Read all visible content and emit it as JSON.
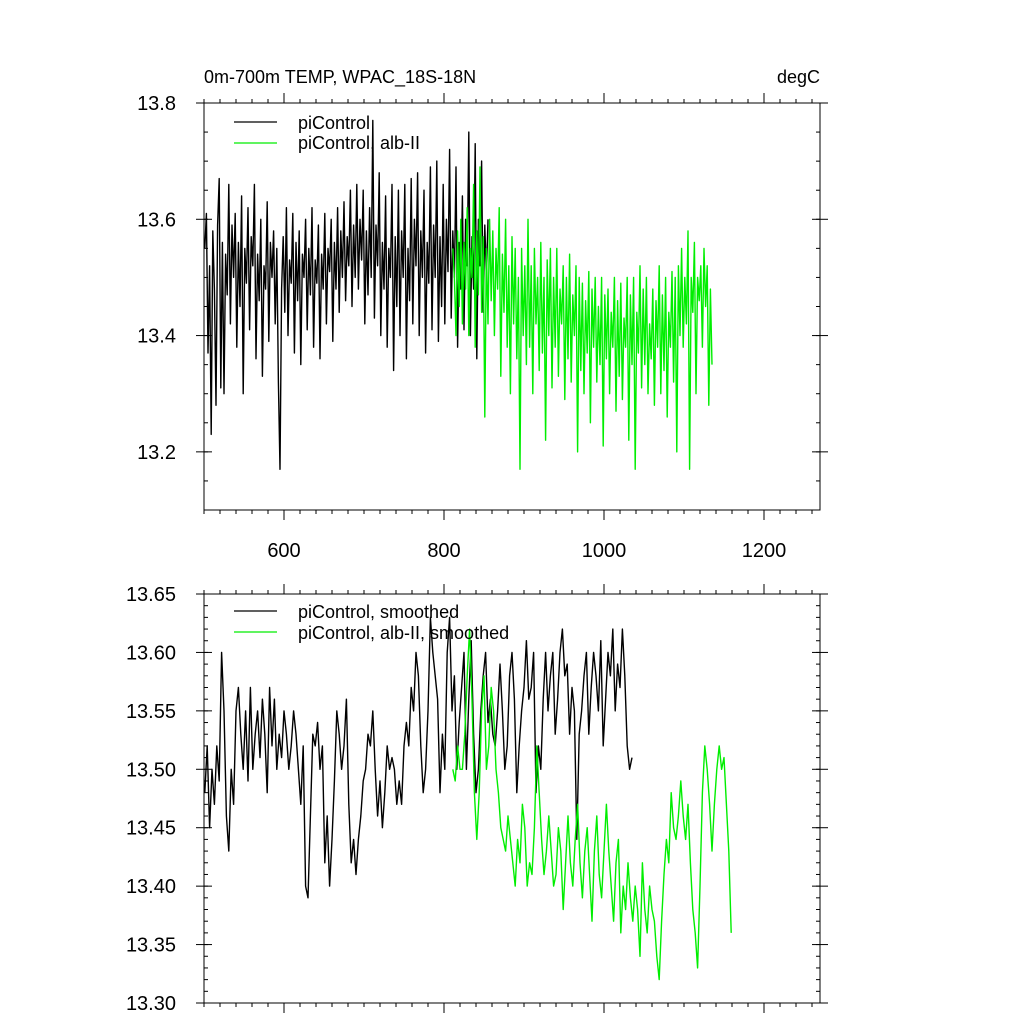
{
  "header": {
    "title_left": "0m-700m TEMP, WPAC_18S-18N",
    "title_right": "degC"
  },
  "chart_data": [
    {
      "type": "line",
      "title": "0m-700m TEMP, WPAC_18S-18N",
      "units": "degC",
      "xlim": [
        500,
        1270
      ],
      "ylim": [
        13.1,
        13.8
      ],
      "xticks": [
        600,
        800,
        1000,
        1200
      ],
      "xtick_labels": [
        "600",
        "800",
        "1000",
        "1200"
      ],
      "yticks": [
        13.2,
        13.4,
        13.6,
        13.8
      ],
      "ytick_labels": [
        "13.2",
        "13.4",
        "13.6",
        "13.8"
      ],
      "grid": false,
      "legend_position": "top-left",
      "series": [
        {
          "name": "piControl",
          "color": "#000000",
          "x_start": 501,
          "x_step": 2,
          "values": [
            13.55,
            13.61,
            13.37,
            13.52,
            13.23,
            13.58,
            13.48,
            13.28,
            13.59,
            13.67,
            13.31,
            13.56,
            13.3,
            13.54,
            13.47,
            13.66,
            13.42,
            13.59,
            13.5,
            13.61,
            13.38,
            13.56,
            13.45,
            13.64,
            13.3,
            13.55,
            13.49,
            13.62,
            13.41,
            13.57,
            13.52,
            13.66,
            13.36,
            13.54,
            13.46,
            13.6,
            13.33,
            13.52,
            13.48,
            13.63,
            13.39,
            13.56,
            13.5,
            13.58,
            13.42,
            13.55,
            13.32,
            13.17,
            13.48,
            13.57,
            13.44,
            13.62,
            13.4,
            13.53,
            13.49,
            13.61,
            13.37,
            13.56,
            13.46,
            13.58,
            13.35,
            13.54,
            13.5,
            13.6,
            13.41,
            13.55,
            13.47,
            13.62,
            13.38,
            13.53,
            13.49,
            13.59,
            13.36,
            13.54,
            13.48,
            13.61,
            13.42,
            13.55,
            13.51,
            13.6,
            13.39,
            13.56,
            13.48,
            13.62,
            13.44,
            13.58,
            13.5,
            13.63,
            13.46,
            13.57,
            13.52,
            13.65,
            13.45,
            13.59,
            13.5,
            13.66,
            13.48,
            13.6,
            13.53,
            13.65,
            13.42,
            13.58,
            13.47,
            13.62,
            13.5,
            13.77,
            13.43,
            13.59,
            13.52,
            13.68,
            13.4,
            13.56,
            13.48,
            13.64,
            13.38,
            13.55,
            13.5,
            13.66,
            13.34,
            13.57,
            13.45,
            13.65,
            13.4,
            13.58,
            13.5,
            13.66,
            13.36,
            13.55,
            13.46,
            13.67,
            13.42,
            13.6,
            13.52,
            13.68,
            13.4,
            13.58,
            13.5,
            13.65,
            13.37,
            13.56,
            13.49,
            13.69,
            13.41,
            13.59,
            13.5,
            13.7,
            13.39,
            13.57,
            13.45,
            13.66,
            13.42,
            13.6,
            13.51,
            13.72,
            13.43,
            13.58,
            13.5,
            13.69,
            13.38,
            13.56,
            13.48,
            13.64,
            13.41,
            13.6,
            13.52,
            13.75,
            13.4,
            13.57,
            13.48,
            13.73,
            13.36,
            13.6,
            13.52,
            13.7,
            13.44,
            13.59,
            13.5,
            13.6
          ]
        },
        {
          "name": "piControl, alb-II",
          "color": "#00ee00",
          "x_start": 811,
          "x_step": 2,
          "values": [
            13.55,
            13.5,
            13.4,
            13.58,
            13.45,
            13.6,
            13.42,
            13.56,
            13.48,
            13.62,
            13.4,
            13.55,
            13.5,
            13.66,
            13.38,
            13.58,
            13.47,
            13.69,
            13.44,
            13.57,
            13.26,
            13.55,
            13.42,
            13.6,
            13.46,
            13.58,
            13.4,
            13.55,
            13.48,
            13.62,
            13.33,
            13.54,
            13.44,
            13.6,
            13.38,
            13.52,
            13.3,
            13.57,
            13.42,
            13.55,
            13.36,
            13.5,
            13.17,
            13.55,
            13.4,
            13.52,
            13.35,
            13.6,
            13.38,
            13.52,
            13.3,
            13.55,
            13.42,
            13.5,
            13.34,
            13.56,
            13.37,
            13.5,
            13.22,
            13.53,
            13.4,
            13.55,
            13.31,
            13.5,
            13.38,
            13.55,
            13.33,
            13.48,
            13.42,
            13.52,
            13.29,
            13.5,
            13.36,
            13.54,
            13.32,
            13.47,
            13.4,
            13.52,
            13.2,
            13.5,
            13.34,
            13.49,
            13.3,
            13.46,
            13.37,
            13.51,
            13.25,
            13.48,
            13.38,
            13.5,
            13.32,
            13.45,
            13.35,
            13.5,
            13.21,
            13.47,
            13.36,
            13.48,
            13.3,
            13.44,
            13.38,
            13.5,
            13.27,
            13.46,
            13.33,
            13.49,
            13.29,
            13.43,
            13.38,
            13.5,
            13.22,
            13.47,
            13.35,
            13.5,
            13.17,
            13.44,
            13.37,
            13.52,
            13.31,
            13.48,
            13.35,
            13.5,
            13.3,
            13.42,
            13.36,
            13.48,
            13.28,
            13.46,
            13.38,
            13.52,
            13.3,
            13.47,
            13.34,
            13.5,
            13.26,
            13.44,
            13.38,
            13.51,
            13.32,
            13.5,
            13.2,
            13.52,
            13.4,
            13.55,
            13.38,
            13.5,
            13.42,
            13.58,
            13.17,
            13.5,
            13.44,
            13.56,
            13.3,
            13.5,
            13.46,
            13.52,
            13.38,
            13.55,
            13.45,
            13.52,
            13.28,
            13.48,
            13.35
          ]
        }
      ]
    },
    {
      "type": "line",
      "xlim": [
        500,
        1270
      ],
      "ylim": [
        13.3,
        13.65
      ],
      "xticks": [
        600,
        800,
        1000,
        1200
      ],
      "yticks": [
        13.3,
        13.35,
        13.4,
        13.45,
        13.5,
        13.55,
        13.6,
        13.65
      ],
      "ytick_labels": [
        "13.30",
        "13.35",
        "13.40",
        "13.45",
        "13.50",
        "13.55",
        "13.60",
        "13.65"
      ],
      "grid": false,
      "legend_position": "top-left",
      "series": [
        {
          "name": "piControl, smoothed",
          "color": "#000000",
          "x_start": 501,
          "x_step": 3,
          "values": [
            13.48,
            13.52,
            13.45,
            13.5,
            13.47,
            13.52,
            13.49,
            13.6,
            13.55,
            13.46,
            13.43,
            13.5,
            13.47,
            13.55,
            13.57,
            13.53,
            13.5,
            13.55,
            13.49,
            13.57,
            13.5,
            13.53,
            13.55,
            13.51,
            13.56,
            13.53,
            13.48,
            13.57,
            13.52,
            13.56,
            13.5,
            13.53,
            13.51,
            13.55,
            13.53,
            13.5,
            13.52,
            13.55,
            13.53,
            13.5,
            13.47,
            13.52,
            13.4,
            13.39,
            13.46,
            13.53,
            13.52,
            13.54,
            13.5,
            13.52,
            13.42,
            13.46,
            13.4,
            13.44,
            13.49,
            13.55,
            13.53,
            13.5,
            13.52,
            13.56,
            13.47,
            13.42,
            13.44,
            13.41,
            13.44,
            13.46,
            13.49,
            13.5,
            13.53,
            13.52,
            13.55,
            13.5,
            13.46,
            13.49,
            13.45,
            13.48,
            13.52,
            13.5,
            13.51,
            13.5,
            13.47,
            13.49,
            13.47,
            13.52,
            13.54,
            13.52,
            13.57,
            13.55,
            13.6,
            13.58,
            13.52,
            13.48,
            13.5,
            13.55,
            13.63,
            13.6,
            13.58,
            13.56,
            13.48,
            13.53,
            13.5,
            13.6,
            13.63,
            13.55,
            13.58,
            13.5,
            13.54,
            13.57,
            13.6,
            13.5,
            13.56,
            13.61,
            13.53,
            13.48,
            13.5,
            13.55,
            13.58,
            13.6,
            13.54,
            13.56,
            13.53,
            13.52,
            13.55,
            13.59,
            13.55,
            13.5,
            13.52,
            13.58,
            13.6,
            13.56,
            13.48,
            13.52,
            13.55,
            13.57,
            13.61,
            13.56,
            13.57,
            13.6,
            13.48,
            13.52,
            13.5,
            13.56,
            13.6,
            13.55,
            13.58,
            13.6,
            13.53,
            13.56,
            13.6,
            13.62,
            13.58,
            13.59,
            13.53,
            13.57,
            13.55,
            13.44,
            13.53,
            13.55,
            13.58,
            13.6,
            13.53,
            13.57,
            13.6,
            13.58,
            13.55,
            13.61,
            13.52,
            13.56,
            13.6,
            13.58,
            13.62,
            13.55,
            13.59,
            13.57,
            13.62,
            13.58,
            13.52,
            13.5,
            13.51
          ]
        },
        {
          "name": "piControl, alb-II, smoothed",
          "color": "#00ee00",
          "x_start": 811,
          "x_step": 3,
          "values": [
            13.5,
            13.49,
            13.52,
            13.5,
            13.5,
            13.53,
            13.58,
            13.62,
            13.56,
            13.48,
            13.44,
            13.48,
            13.55,
            13.58,
            13.5,
            13.52,
            13.57,
            13.55,
            13.5,
            13.48,
            13.45,
            13.44,
            13.43,
            13.46,
            13.44,
            13.42,
            13.4,
            13.44,
            13.42,
            13.47,
            13.45,
            13.4,
            13.42,
            13.41,
            13.45,
            13.52,
            13.48,
            13.44,
            13.41,
            13.43,
            13.46,
            13.43,
            13.4,
            13.41,
            13.45,
            13.43,
            13.38,
            13.42,
            13.46,
            13.42,
            13.4,
            13.44,
            13.47,
            13.42,
            13.39,
            13.43,
            13.45,
            13.41,
            13.37,
            13.43,
            13.46,
            13.41,
            13.39,
            13.43,
            13.47,
            13.43,
            13.4,
            13.37,
            13.42,
            13.44,
            13.36,
            13.4,
            13.38,
            13.42,
            13.39,
            13.37,
            13.4,
            13.38,
            13.34,
            13.42,
            13.38,
            13.36,
            13.4,
            13.38,
            13.37,
            13.34,
            13.32,
            13.37,
            13.41,
            13.44,
            13.42,
            13.48,
            13.45,
            13.44,
            13.46,
            13.49,
            13.46,
            13.44,
            13.47,
            13.42,
            13.38,
            13.36,
            13.33,
            13.4,
            13.48,
            13.52,
            13.5,
            13.47,
            13.43,
            13.47,
            13.5,
            13.52,
            13.5,
            13.51,
            13.47,
            13.43,
            13.36
          ]
        }
      ]
    }
  ]
}
